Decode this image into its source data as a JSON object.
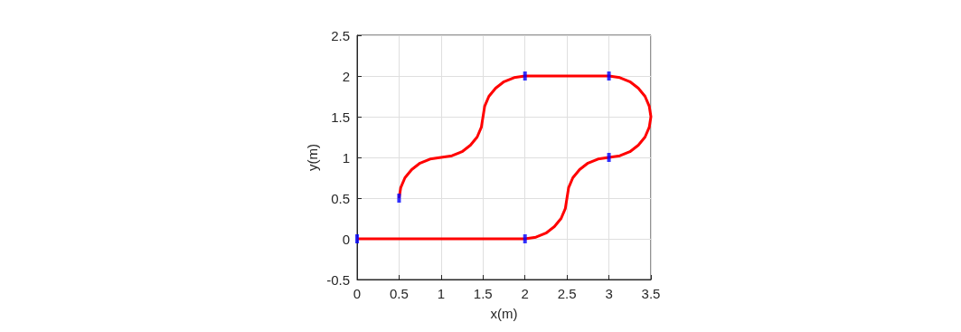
{
  "chart_data": {
    "type": "line",
    "xlabel": "x(m)",
    "ylabel": "y(m)",
    "xlim": [
      0,
      3.5
    ],
    "ylim": [
      -0.5,
      2.5
    ],
    "xticks": [
      0,
      0.5,
      1,
      1.5,
      2,
      2.5,
      3,
      3.5
    ],
    "yticks": [
      -0.5,
      0,
      0.5,
      1,
      1.5,
      2,
      2.5
    ],
    "grid": true,
    "line_style": "solid",
    "series": [
      {
        "color": "#ff0000",
        "marker": "none",
        "x": [
          0,
          2,
          2.13,
          2.25,
          2.35,
          2.43,
          2.48,
          2.5,
          2.52,
          2.57,
          2.65,
          2.75,
          2.87,
          3,
          3.13,
          3.25,
          3.35,
          3.43,
          3.48,
          3.5,
          3.48,
          3.43,
          3.35,
          3.25,
          3.13,
          3,
          2,
          1.87,
          1.75,
          1.65,
          1.57,
          1.52,
          1.5,
          1.48,
          1.43,
          1.35,
          1.25,
          1.13,
          1,
          0.87,
          0.75,
          0.65,
          0.57,
          0.52,
          0.5
        ],
        "values": [
          0,
          0,
          0.02,
          0.07,
          0.15,
          0.25,
          0.37,
          0.5,
          0.63,
          0.75,
          0.85,
          0.93,
          0.98,
          1,
          1.02,
          1.07,
          1.15,
          1.25,
          1.37,
          1.5,
          1.63,
          1.75,
          1.85,
          1.93,
          1.98,
          2,
          2,
          1.98,
          1.93,
          1.85,
          1.75,
          1.63,
          1.5,
          1.37,
          1.25,
          1.15,
          1.07,
          1.02,
          1,
          0.98,
          0.93,
          0.85,
          0.75,
          0.63,
          0.5
        ]
      },
      {
        "type": "scatter",
        "color": "#0000ff",
        "marker": "square",
        "x": [
          0,
          2,
          3,
          3,
          2,
          0.5
        ],
        "values": [
          0,
          0,
          1,
          2,
          2,
          0.5
        ]
      }
    ]
  }
}
